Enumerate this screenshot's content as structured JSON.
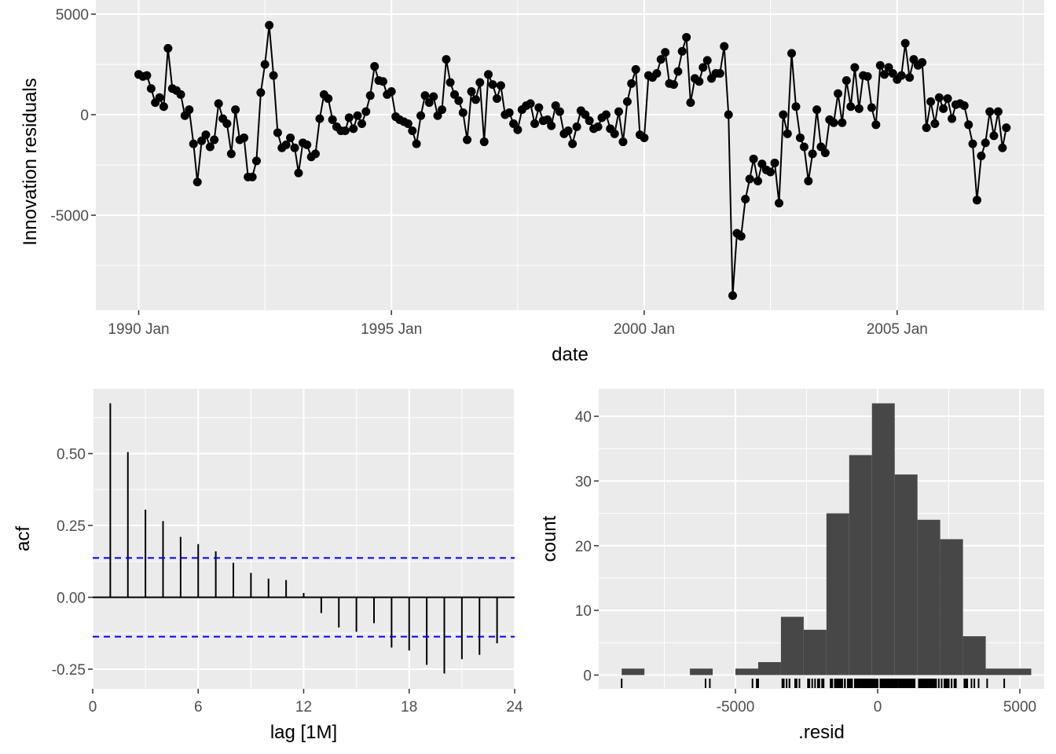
{
  "colors": {
    "panel_bg": "#EBEBEB",
    "grid": "#FFFFFF",
    "line": "#000000",
    "bar": "#474747",
    "ci": "#0000FF",
    "tick_text": "#4D4D4D"
  },
  "chart_data": [
    {
      "id": "residuals",
      "type": "line",
      "xlabel": "date",
      "ylabel": "Innovation residuals",
      "x_ticks": [
        "1990 Jan",
        "1995 Jan",
        "2000 Jan",
        "2005 Jan"
      ],
      "y_ticks": [
        "5000",
        "0",
        "-5000"
      ],
      "x_start": "1990 Jan",
      "x_end": "2007 Jun",
      "ylim": [
        -9700,
        5000
      ],
      "points": true,
      "values": [
        2000,
        1900,
        1950,
        1300,
        600,
        850,
        400,
        3300,
        1300,
        1200,
        1000,
        -50,
        250,
        -1450,
        -3350,
        -1300,
        -1000,
        -1600,
        -1250,
        550,
        -200,
        -450,
        -1950,
        250,
        -1250,
        -1150,
        -3100,
        -3100,
        -2300,
        1100,
        2500,
        4450,
        1950,
        -900,
        -1650,
        -1500,
        -1150,
        -1650,
        -2900,
        -1400,
        -1500,
        -2100,
        -1950,
        -200,
        1000,
        800,
        -250,
        -600,
        -800,
        -800,
        -150,
        -700,
        -50,
        -450,
        150,
        950,
        2400,
        1700,
        1650,
        1000,
        1150,
        -100,
        -250,
        -350,
        -450,
        -800,
        -1450,
        -50,
        950,
        600,
        900,
        -50,
        250,
        2750,
        1600,
        1000,
        700,
        100,
        -1250,
        1150,
        750,
        1600,
        -1350,
        2000,
        1500,
        800,
        1450,
        0,
        100,
        -450,
        -750,
        250,
        450,
        550,
        -450,
        350,
        -300,
        -250,
        -550,
        450,
        150,
        -950,
        -800,
        -1450,
        -600,
        200,
        0,
        -300,
        -700,
        -600,
        -150,
        0,
        -700,
        -950,
        150,
        -1350,
        650,
        1550,
        2250,
        -1000,
        -1150,
        1950,
        1850,
        2050,
        2750,
        3100,
        1550,
        1500,
        2150,
        3150,
        3850,
        600,
        1800,
        1650,
        2350,
        2700,
        1800,
        2050,
        2050,
        3400,
        0,
        -9000,
        -5900,
        -6050,
        -4200,
        -3200,
        -2200,
        -3300,
        -2450,
        -2750,
        -2850,
        -2400,
        -4400,
        0,
        -950,
        3050,
        400,
        -1150,
        -1600,
        -3300,
        -1950,
        250,
        -1600,
        -1900,
        -250,
        -400,
        1050,
        -400,
        1700,
        400,
        2350,
        300,
        1950,
        1900,
        350,
        -500,
        2450,
        2000,
        2350,
        2050,
        1750,
        1950,
        3550,
        1850,
        2750,
        2450,
        2600,
        -650,
        650,
        -450,
        850,
        300,
        800,
        -200,
        500,
        550,
        450,
        -500,
        -1450,
        -4250,
        -2050,
        -1400,
        150,
        -1050,
        150,
        -1650,
        -650
      ]
    },
    {
      "id": "acf",
      "type": "bar",
      "xlabel": "lag [1M]",
      "ylabel": "acf",
      "x_ticks": [
        0,
        6,
        12,
        18,
        24
      ],
      "y_ticks": [
        "-0.25",
        "0.00",
        "0.25",
        "0.50"
      ],
      "xlim": [
        0,
        24
      ],
      "ylim": [
        -0.3,
        0.7
      ],
      "lags": [
        1,
        2,
        3,
        4,
        5,
        6,
        7,
        8,
        9,
        10,
        11,
        12,
        13,
        14,
        15,
        16,
        17,
        18,
        19,
        20,
        21,
        22,
        23
      ],
      "values": [
        0.675,
        0.505,
        0.305,
        0.265,
        0.21,
        0.185,
        0.16,
        0.12,
        0.085,
        0.065,
        0.06,
        0.015,
        -0.055,
        -0.105,
        -0.12,
        -0.09,
        -0.175,
        -0.185,
        -0.235,
        -0.265,
        -0.215,
        -0.2,
        -0.16
      ],
      "ci": 0.137
    },
    {
      "id": "histogram",
      "type": "bar",
      "xlabel": ".resid",
      "ylabel": "count",
      "x_ticks": [
        "-5000",
        "0",
        "5000"
      ],
      "y_ticks": [
        "0",
        "10",
        "20",
        "30",
        "40"
      ],
      "xlim": [
        -9400,
        5600
      ],
      "ylim": [
        -2.5,
        44
      ],
      "bin_edges": [
        -9000,
        -8200,
        -7400,
        -6600,
        -5800,
        -5000,
        -4200,
        -3400,
        -2600,
        -1800,
        -1000,
        -200,
        600,
        1400,
        2200,
        3000,
        3800,
        4600,
        5400
      ],
      "counts": [
        1,
        0,
        0,
        1,
        0,
        1,
        2,
        9,
        7,
        25,
        34,
        42,
        31,
        24,
        21,
        6,
        1,
        1
      ],
      "rug": [
        -9000,
        -6050,
        -5900,
        -4400,
        -4250,
        -4200,
        -3350,
        -3300,
        -3300,
        -3200,
        -3100,
        -3100,
        -2900,
        -2850,
        -2750,
        -2450,
        -2400,
        -2300,
        -2200,
        -2100,
        -2050,
        -1950,
        -1950,
        -1950,
        -1900,
        -1650,
        -1650,
        -1600,
        -1600,
        -1600,
        -1500,
        -1500,
        -1450,
        -1450,
        -1450,
        -1400,
        -1400,
        -1350,
        -1350,
        -1300,
        -1250,
        -1250,
        -1250,
        -1150,
        -1150,
        -1150,
        -1150,
        -1050,
        -1000,
        -1000,
        -950,
        -950,
        -950,
        -900,
        -800,
        -800,
        -800,
        -750,
        -700,
        -700,
        -700,
        -650,
        -650,
        -600,
        -600,
        -550,
        -500,
        -500,
        -450,
        -450,
        -450,
        -450,
        -450,
        -400,
        -400,
        -350,
        -350,
        -300,
        -300,
        -300,
        -250,
        -250,
        -250,
        -250,
        -200,
        -200,
        -200,
        -150,
        -150,
        -150,
        -100,
        -100,
        -50,
        -50,
        -50,
        -50,
        -50,
        0,
        0,
        0,
        0,
        0,
        100,
        100,
        150,
        150,
        150,
        150,
        150,
        150,
        200,
        250,
        250,
        250,
        250,
        300,
        300,
        350,
        350,
        400,
        400,
        450,
        450,
        450,
        500,
        500,
        550,
        550,
        550,
        600,
        600,
        650,
        650,
        700,
        750,
        800,
        800,
        800,
        850,
        850,
        900,
        950,
        950,
        1000,
        1000,
        1000,
        1050,
        1100,
        1150,
        1150,
        1200,
        1250,
        1300,
        1450,
        1500,
        1500,
        1550,
        1550,
        1600,
        1600,
        1650,
        1650,
        1700,
        1700,
        1750,
        1800,
        1800,
        1850,
        1850,
        1900,
        1950,
        1950,
        1950,
        1950,
        2000,
        2000,
        2000,
        2050,
        2050,
        2050,
        2150,
        2250,
        2350,
        2350,
        2400,
        2450,
        2450,
        2500,
        2600,
        2700,
        2750,
        2750,
        3050,
        3100,
        3150,
        3300,
        3400,
        3550,
        3850,
        4450
      ]
    }
  ]
}
